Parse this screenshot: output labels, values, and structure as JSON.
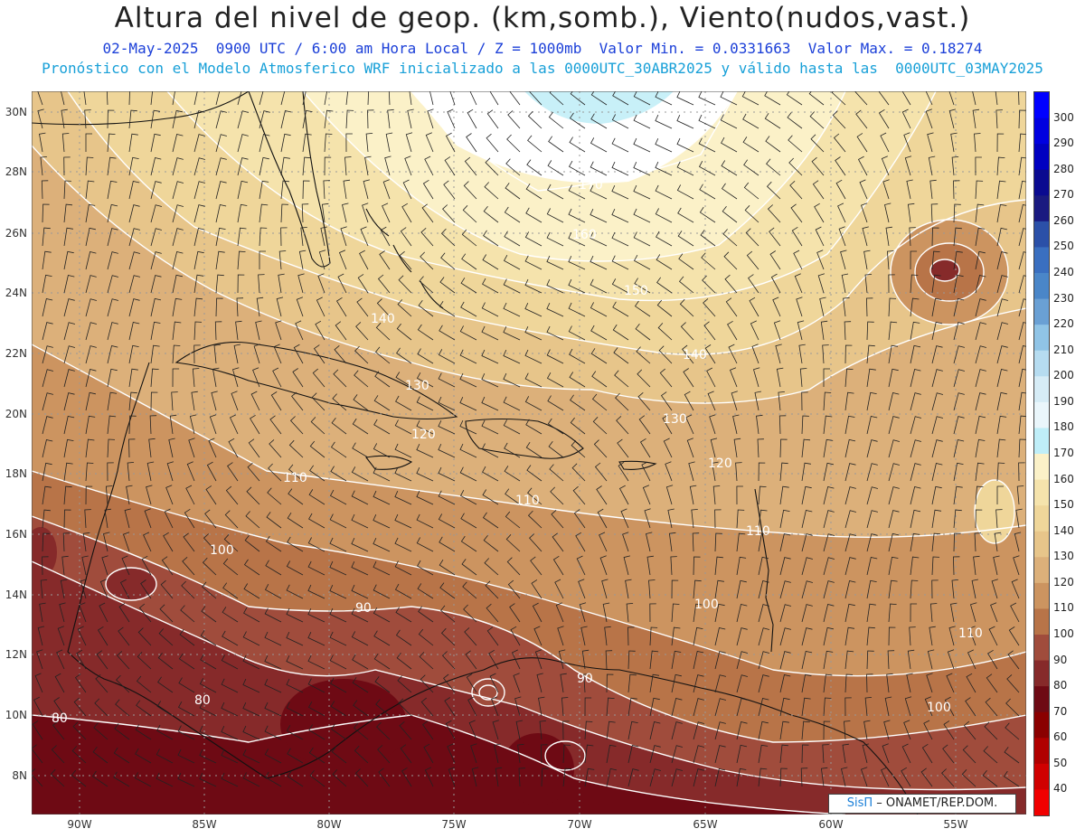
{
  "title": "Altura del nivel de geop. (km,somb.), Viento(nudos,vast.)",
  "subtitle1": "02-May-2025  0900 UTC / 6:00 am Hora Local / Z = 1000mb  Valor Min. = 0.0331663  Valor Max. = 0.18274",
  "subtitle2": "Pronóstico con el Modelo Atmosferico WRF inicializado a las 0000UTC_30ABR2025 y válido hasta las  0000UTC_03MAY2025",
  "lat_labels": [
    "30N",
    "28N",
    "26N",
    "24N",
    "22N",
    "20N",
    "18N",
    "16N",
    "14N",
    "12N",
    "10N",
    "8N"
  ],
  "lon_labels": [
    "90W",
    "85W",
    "80W",
    "75W",
    "70W",
    "65W",
    "60W",
    "55W"
  ],
  "colorbar": {
    "labels": [
      "300",
      "290",
      "280",
      "270",
      "260",
      "250",
      "240",
      "230",
      "220",
      "210",
      "200",
      "190",
      "180",
      "170",
      "160",
      "150",
      "140",
      "130",
      "120",
      "110",
      "100",
      "90",
      "80",
      "70",
      "60",
      "50",
      "40"
    ],
    "colors": [
      "#0000ff",
      "#0000e0",
      "#0000c0",
      "#0a0a90",
      "#1a1a80",
      "#2b50a8",
      "#3a6fc0",
      "#4a86c8",
      "#6aa0d4",
      "#90c4e6",
      "#b6dcf0",
      "#d6ecf6",
      "#eaf6fb",
      "#bfeef8",
      "#fbf1c8",
      "#f5e3ac",
      "#efd69a",
      "#e7c58a",
      "#dcb07a",
      "#cc9460",
      "#b87448",
      "#a04c3c",
      "#862a2a",
      "#6e0a14",
      "#8a0000",
      "#b00000",
      "#d00000",
      "#f00000"
    ]
  },
  "contour_labels": [
    {
      "text": "170"
    },
    {
      "text": "160"
    },
    {
      "text": "150"
    },
    {
      "text": "140"
    },
    {
      "text": "140"
    },
    {
      "text": "130"
    },
    {
      "text": "130"
    },
    {
      "text": "120"
    },
    {
      "text": "120"
    },
    {
      "text": "110"
    },
    {
      "text": "110"
    },
    {
      "text": "110"
    },
    {
      "text": "110"
    },
    {
      "text": "100"
    },
    {
      "text": "100"
    },
    {
      "text": "100"
    },
    {
      "text": "90"
    },
    {
      "text": "90"
    },
    {
      "text": "80"
    },
    {
      "text": "80"
    }
  ],
  "credit": {
    "sis": "SisΠ",
    "org": "– ONAMET/REP.DOM."
  }
}
